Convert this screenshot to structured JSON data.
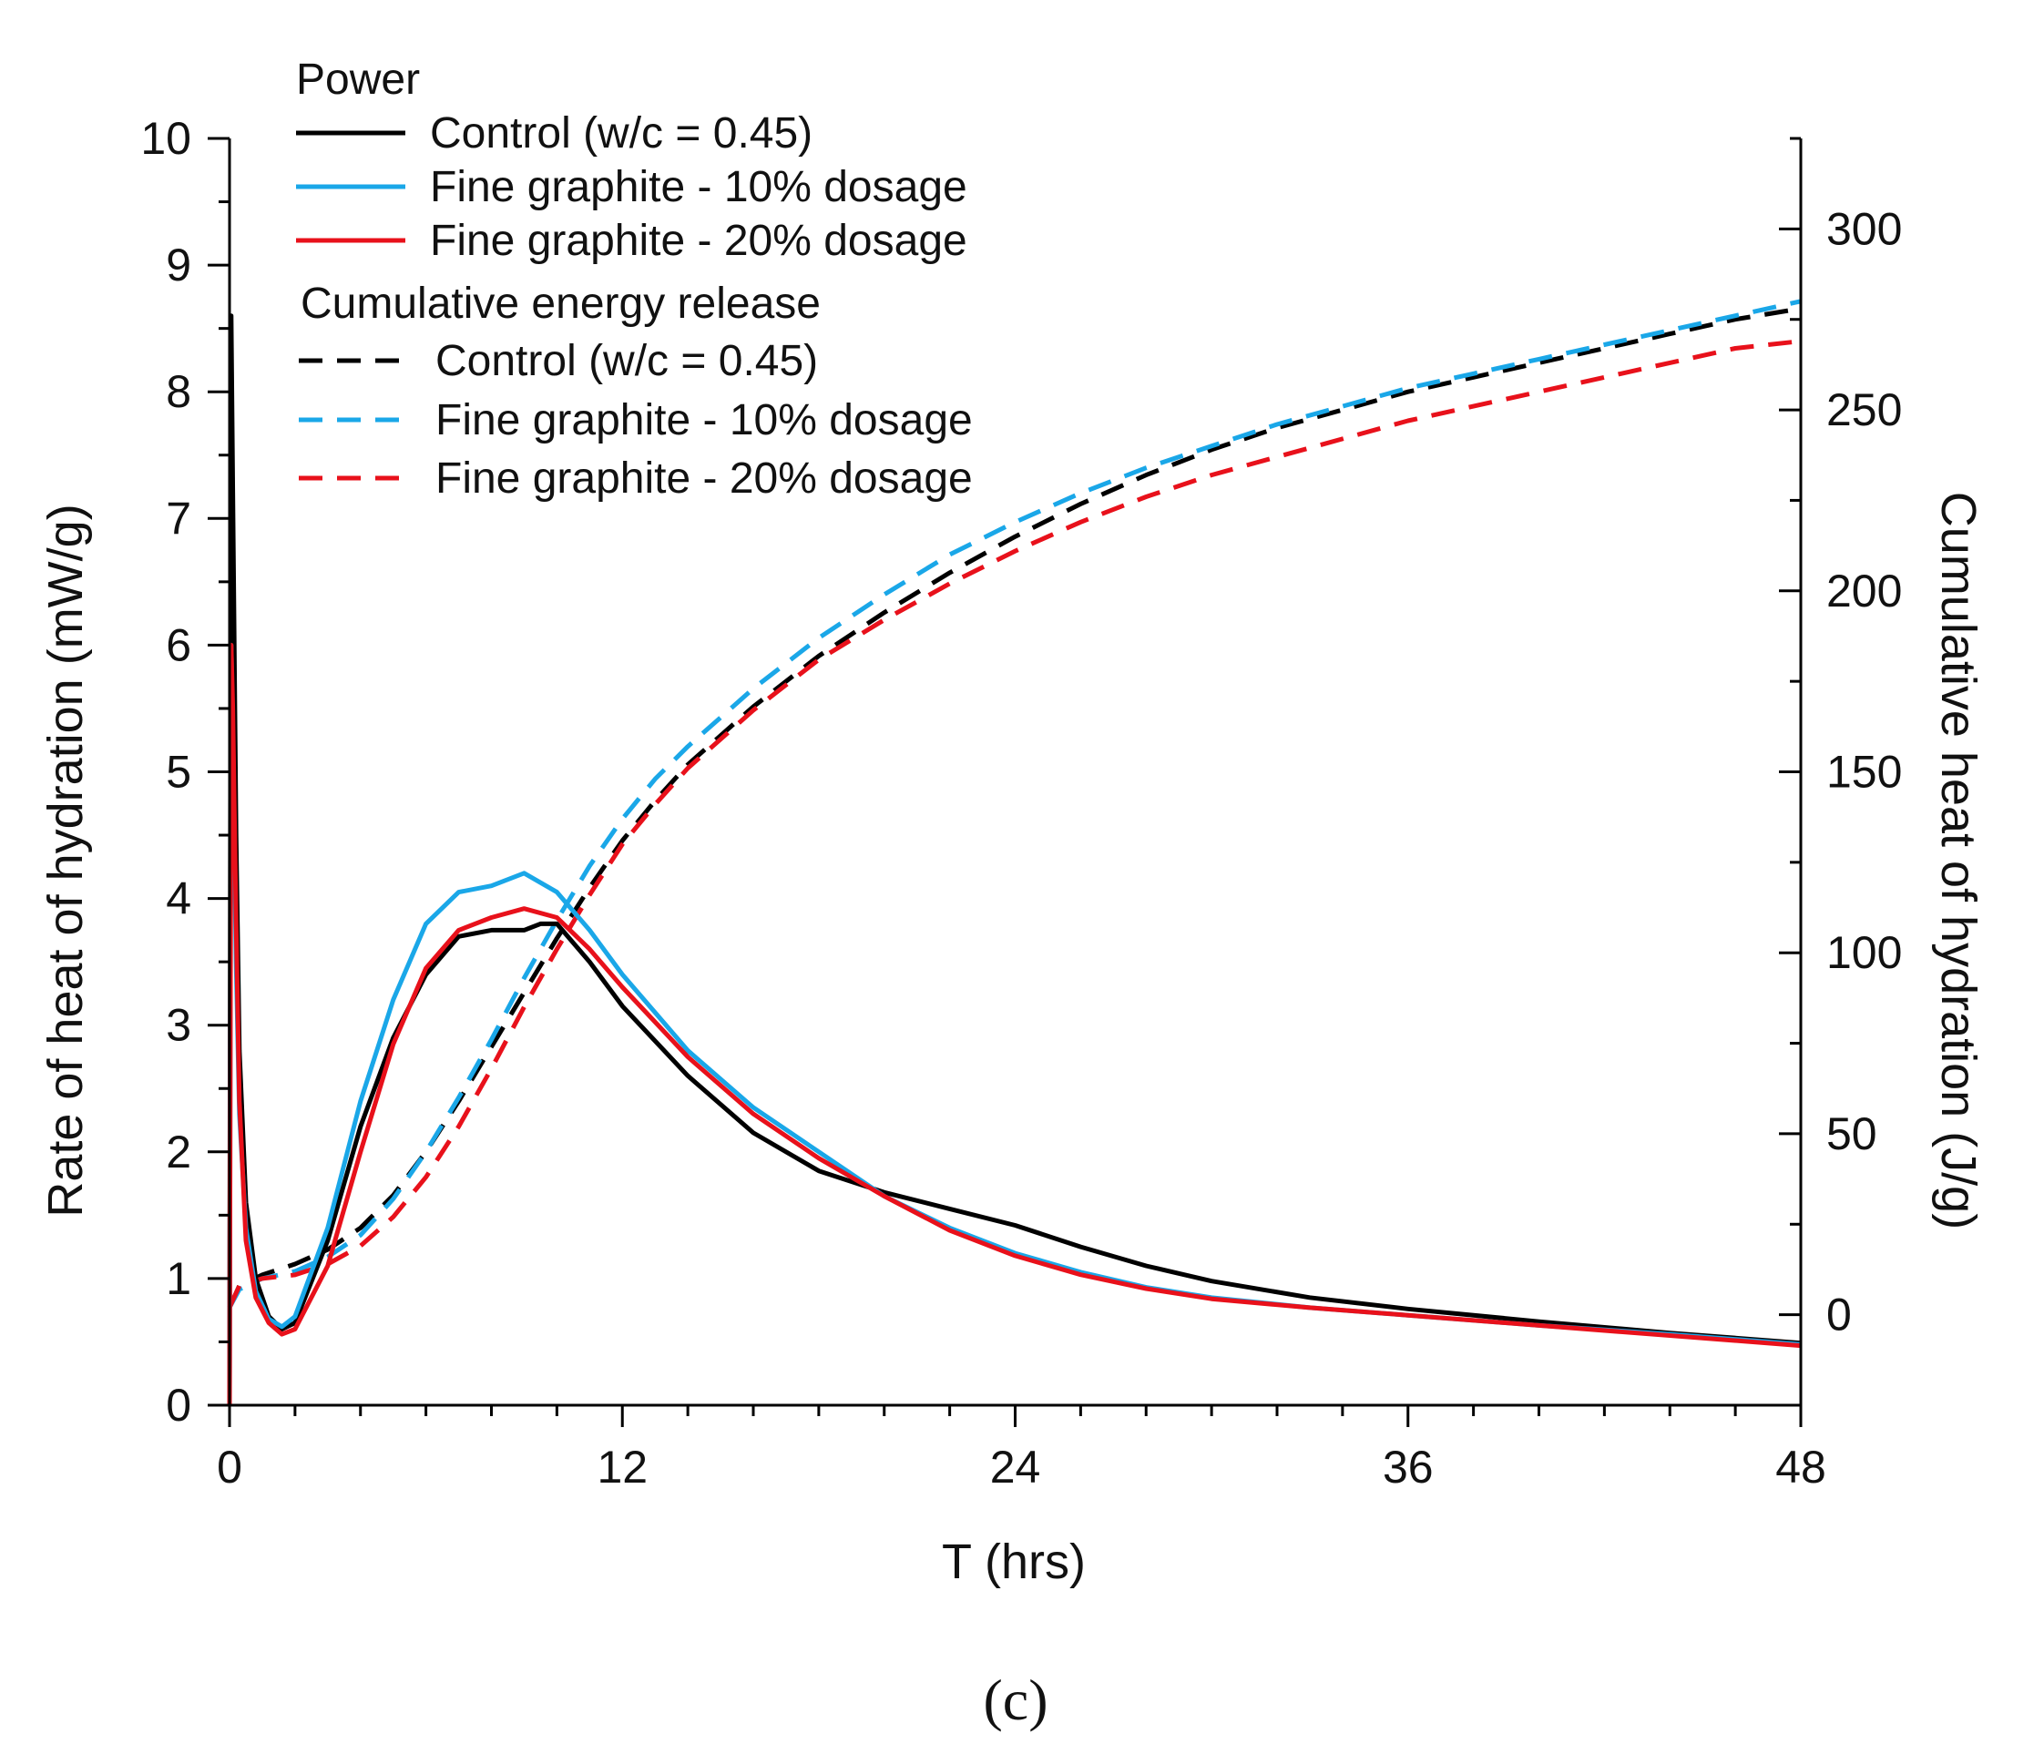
{
  "chart_data": {
    "type": "line",
    "xlabel": "T (hrs)",
    "ylabel_left": "Rate of heat of hydration (mW/g)",
    "ylabel_right": "Cumulative heat of hydration (J/g)",
    "xlim": [
      0,
      48
    ],
    "ylim_left": [
      0,
      10
    ],
    "ylim_right": [
      -25,
      325
    ],
    "x_ticks": [
      0,
      12,
      24,
      36,
      48
    ],
    "y_ticks_left": [
      0,
      1,
      2,
      3,
      4,
      5,
      6,
      7,
      8,
      9,
      10
    ],
    "y_ticks_right": [
      0,
      50,
      100,
      150,
      200,
      250,
      300
    ],
    "grid": false,
    "legend_position": "top-left",
    "panel_label": "(c)",
    "legend": {
      "power_heading": "Power",
      "cumulative_heading": "Cumulative energy release"
    },
    "series": [
      {
        "name": "Control (w/c = 0.45)",
        "group": "power",
        "axis": "left",
        "style": "solid",
        "color": "#000000",
        "x": [
          0,
          0.05,
          0.1,
          0.2,
          0.3,
          0.5,
          0.8,
          1.2,
          1.6,
          2.0,
          3.0,
          4.0,
          5.0,
          6.0,
          7.0,
          8.0,
          9.0,
          9.5,
          10.0,
          11.0,
          12.0,
          14.0,
          16.0,
          18.0,
          20.0,
          22.0,
          24.0,
          26.0,
          28.0,
          30.0,
          33.0,
          36.0,
          40.0,
          44.0,
          48.0
        ],
        "y": [
          0,
          8.6,
          7.2,
          4.5,
          2.8,
          1.6,
          1.0,
          0.7,
          0.6,
          0.65,
          1.3,
          2.2,
          2.9,
          3.4,
          3.7,
          3.75,
          3.75,
          3.8,
          3.8,
          3.5,
          3.15,
          2.6,
          2.15,
          1.85,
          1.68,
          1.55,
          1.42,
          1.25,
          1.1,
          0.98,
          0.85,
          0.76,
          0.66,
          0.57,
          0.49
        ]
      },
      {
        "name": "Fine graphite - 10% dosage",
        "group": "power",
        "axis": "left",
        "style": "solid",
        "color": "#1aa7e8",
        "x": [
          0,
          0.05,
          0.1,
          0.2,
          0.3,
          0.5,
          0.8,
          1.2,
          1.6,
          2.0,
          3.0,
          4.0,
          5.0,
          6.0,
          7.0,
          8.0,
          9.0,
          10.0,
          11.0,
          12.0,
          14.0,
          16.0,
          18.0,
          20.0,
          22.0,
          24.0,
          26.0,
          28.0,
          30.0,
          33.0,
          36.0,
          40.0,
          44.0,
          48.0
        ],
        "y": [
          0,
          6.0,
          5.2,
          3.5,
          2.3,
          1.4,
          0.9,
          0.68,
          0.62,
          0.7,
          1.4,
          2.4,
          3.2,
          3.8,
          4.05,
          4.1,
          4.2,
          4.05,
          3.75,
          3.4,
          2.8,
          2.35,
          2.0,
          1.65,
          1.4,
          1.2,
          1.05,
          0.93,
          0.85,
          0.77,
          0.71,
          0.63,
          0.56,
          0.48
        ]
      },
      {
        "name": "Fine graphite - 20% dosage",
        "group": "power",
        "axis": "left",
        "style": "solid",
        "color": "#e8111b",
        "x": [
          0,
          0.05,
          0.1,
          0.2,
          0.3,
          0.5,
          0.8,
          1.2,
          1.6,
          2.0,
          3.0,
          4.0,
          5.0,
          6.0,
          7.0,
          8.0,
          9.0,
          10.0,
          11.0,
          12.0,
          14.0,
          16.0,
          18.0,
          20.0,
          22.0,
          24.0,
          26.0,
          28.0,
          30.0,
          33.0,
          36.0,
          40.0,
          44.0,
          48.0
        ],
        "y": [
          0,
          6.0,
          5.5,
          3.8,
          2.4,
          1.3,
          0.85,
          0.65,
          0.56,
          0.6,
          1.1,
          2.0,
          2.85,
          3.45,
          3.75,
          3.85,
          3.92,
          3.85,
          3.6,
          3.3,
          2.75,
          2.3,
          1.95,
          1.65,
          1.38,
          1.18,
          1.03,
          0.92,
          0.84,
          0.77,
          0.71,
          0.63,
          0.55,
          0.47
        ]
      },
      {
        "name": "Control (w/c = 0.45)",
        "group": "cumulative",
        "axis": "right",
        "style": "dashed",
        "color": "#000000",
        "x": [
          0,
          0.3,
          1,
          2,
          3,
          4,
          5,
          6,
          7,
          8,
          9,
          10,
          11,
          12,
          13,
          14,
          16,
          18,
          20,
          22,
          24,
          26,
          28,
          30,
          32,
          34,
          36,
          38,
          40,
          42,
          44,
          46,
          48
        ],
        "y": [
          2,
          8,
          11,
          14,
          18,
          24,
          33,
          45,
          59,
          74,
          89,
          104,
          118,
          131,
          142,
          152,
          168,
          182,
          194,
          205,
          215,
          224,
          232,
          239,
          245,
          250,
          255,
          259,
          263,
          267,
          271,
          275,
          278
        ]
      },
      {
        "name": "Fine graphite - 10% dosage",
        "group": "cumulative",
        "axis": "right",
        "style": "dashed",
        "color": "#1aa7e8",
        "x": [
          0,
          0.3,
          1,
          2,
          3,
          4,
          5,
          6,
          7,
          8,
          9,
          10,
          11,
          12,
          13,
          14,
          16,
          18,
          20,
          22,
          24,
          26,
          28,
          30,
          32,
          34,
          36,
          38,
          40,
          42,
          44,
          46,
          48
        ],
        "y": [
          2,
          7,
          10,
          12,
          16,
          22,
          32,
          45,
          60,
          76,
          93,
          109,
          124,
          137,
          148,
          157,
          173,
          187,
          199,
          210,
          219,
          227,
          234,
          240,
          246,
          251,
          256,
          260,
          264,
          268,
          272,
          276,
          280
        ]
      },
      {
        "name": "Fine graphite - 20% dosage",
        "group": "cumulative",
        "axis": "right",
        "style": "dashed",
        "color": "#e8111b",
        "x": [
          0,
          0.3,
          1,
          2,
          3,
          4,
          5,
          6,
          7,
          8,
          9,
          10,
          11,
          12,
          13,
          14,
          16,
          18,
          20,
          22,
          24,
          26,
          28,
          30,
          32,
          34,
          36,
          38,
          40,
          42,
          44,
          46,
          48
        ],
        "y": [
          2,
          8,
          10,
          11,
          14,
          19,
          27,
          38,
          52,
          68,
          85,
          101,
          116,
          130,
          141,
          151,
          167,
          181,
          192,
          202,
          211,
          219,
          226,
          232,
          237,
          242,
          247,
          251,
          255,
          259,
          263,
          267,
          269
        ]
      }
    ]
  }
}
